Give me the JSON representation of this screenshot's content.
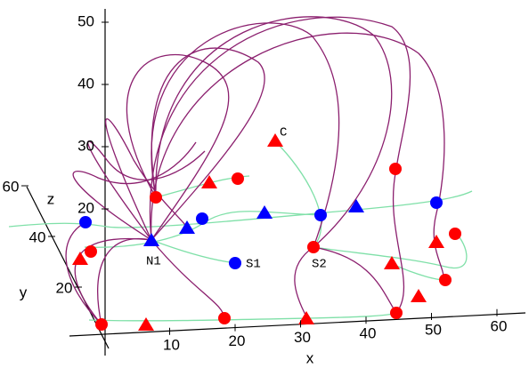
{
  "chart_data": {
    "type": "scatter3d",
    "xlabel": "x",
    "ylabel": "y",
    "zlabel": "z",
    "xticks": [
      10,
      20,
      30,
      40,
      50,
      60
    ],
    "yticks": [
      20,
      40,
      60
    ],
    "zticks": [
      20,
      30,
      40,
      50
    ],
    "annotations": [
      "N1",
      "S1",
      "S2",
      "C"
    ]
  }
}
